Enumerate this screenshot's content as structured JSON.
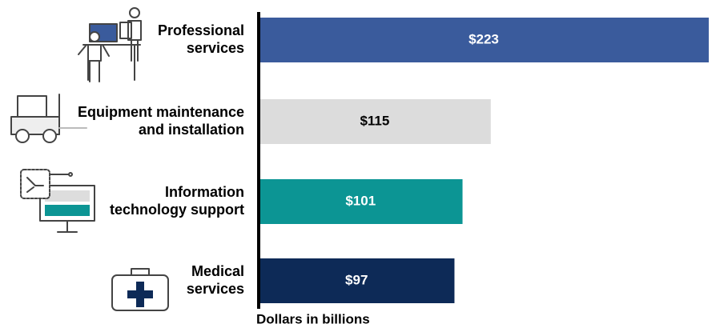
{
  "chart_data": {
    "type": "bar",
    "orientation": "horizontal",
    "categories": [
      "Professional\nservices",
      "Equipment maintenance\nand installation",
      "Information\ntechnology support",
      "Medical\nservices"
    ],
    "values": [
      223,
      115,
      101,
      97
    ],
    "value_labels": [
      "$223",
      "$115",
      "$101",
      "$97"
    ],
    "colors": [
      "#3a5b9c",
      "#dcdcdc",
      "#0c9594",
      "#0d2a57"
    ],
    "xlim": [
      0,
      225
    ],
    "xlabel": "Dollars in billions"
  }
}
